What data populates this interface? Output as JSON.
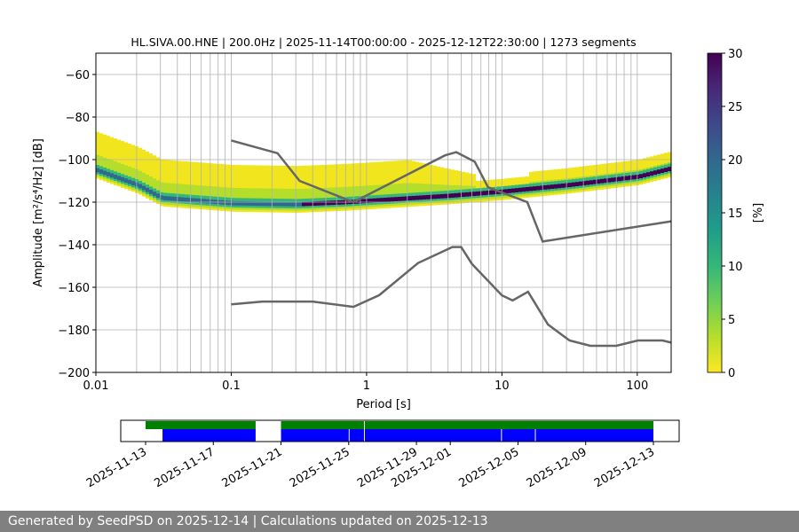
{
  "chart_data": {
    "type": "heatmap",
    "title": "HL.SIVA.00.HNE | 200.0Hz | 2025-11-14T00:00:00 - 2025-12-12T22:30:00 | 1273 segments",
    "xlabel": "Period [s]",
    "ylabel": "Amplitude [m²/s⁴/Hz] [dB]",
    "xscale": "log",
    "xlim": [
      0.01,
      178
    ],
    "ylim": [
      -200,
      -50
    ],
    "xticks": [
      "0.01",
      "0.1",
      "1",
      "10",
      "100"
    ],
    "yticks": [
      "−60",
      "−80",
      "−100",
      "−120",
      "−140",
      "−160",
      "−180",
      "−200"
    ],
    "colorbar": {
      "label": "[%]",
      "range": [
        0,
        30
      ],
      "ticks": [
        "0",
        "5",
        "10",
        "15",
        "20",
        "25",
        "30"
      ]
    },
    "grid": true,
    "mode_curve": [
      [
        0.01,
        -105
      ],
      [
        0.02,
        -112
      ],
      [
        0.03,
        -118
      ],
      [
        0.1,
        -120.5
      ],
      [
        0.3,
        -121
      ],
      [
        0.7,
        -120
      ],
      [
        4,
        -117
      ],
      [
        10,
        -115
      ],
      [
        30,
        -112
      ],
      [
        100,
        -108
      ],
      [
        178,
        -104
      ]
    ],
    "nhnm": [
      [
        0.1,
        -91
      ],
      [
        0.22,
        -97
      ],
      [
        0.32,
        -110
      ],
      [
        0.8,
        -120
      ],
      [
        3.8,
        -98
      ],
      [
        4.6,
        -96.5
      ],
      [
        6.3,
        -101
      ],
      [
        7.9,
        -113
      ],
      [
        15.4,
        -120
      ],
      [
        20,
        -138.5
      ],
      [
        178,
        -129
      ]
    ],
    "nlnm": [
      [
        0.1,
        -168
      ],
      [
        0.17,
        -166.7
      ],
      [
        0.4,
        -166.7
      ],
      [
        0.8,
        -169.2
      ],
      [
        1.24,
        -163.7
      ],
      [
        2.4,
        -148.6
      ],
      [
        4.3,
        -141.1
      ],
      [
        5,
        -141.1
      ],
      [
        6,
        -149
      ],
      [
        10,
        -163.8
      ],
      [
        12,
        -166.2
      ],
      [
        15.6,
        -162.1
      ],
      [
        21.9,
        -177.5
      ],
      [
        31.6,
        -185
      ],
      [
        45,
        -187.5
      ],
      [
        70,
        -187.5
      ],
      [
        101,
        -185
      ],
      [
        154,
        -185
      ],
      [
        178,
        -186
      ]
    ]
  },
  "timeline": {
    "ticks": [
      "2025-11-13",
      "2025-11-17",
      "2025-11-21",
      "2025-11-25",
      "2025-11-29",
      "2025-12-01",
      "2025-12-05",
      "2025-12-09",
      "2025-12-13"
    ],
    "tick_days": [
      0,
      4,
      8,
      12,
      16,
      18,
      22,
      26,
      30
    ],
    "green_spans": [
      [
        0,
        6.5
      ],
      [
        8,
        12.9
      ],
      [
        12.95,
        30
      ]
    ],
    "blue_spans": [
      [
        1,
        6.5
      ],
      [
        8,
        12
      ],
      [
        12.05,
        12.9
      ],
      [
        12.95,
        21
      ],
      [
        21.05,
        23
      ],
      [
        23.05,
        30
      ]
    ]
  },
  "footer": "Generated by SeedPSD on 2025-12-14 | Calculations updated on 2025-12-13"
}
